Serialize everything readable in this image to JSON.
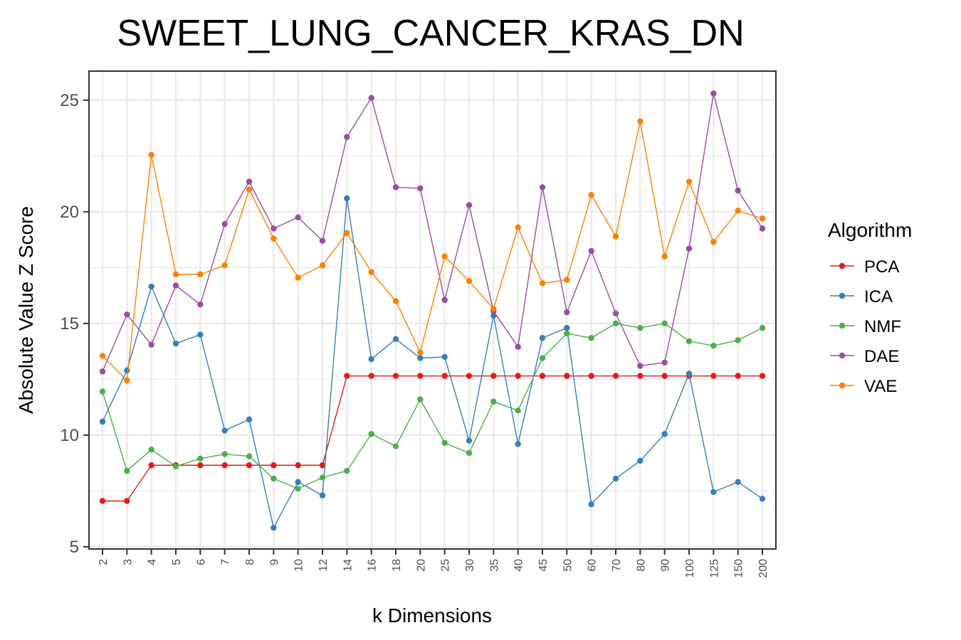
{
  "chart_data": {
    "type": "line",
    "title": "SWEET_LUNG_CANCER_KRAS_DN",
    "xlabel": "k Dimensions",
    "ylabel": "Absolute Value Z Score",
    "categories": [
      "2",
      "3",
      "4",
      "5",
      "6",
      "7",
      "8",
      "9",
      "10",
      "12",
      "14",
      "16",
      "18",
      "20",
      "25",
      "30",
      "35",
      "40",
      "45",
      "50",
      "60",
      "70",
      "80",
      "90",
      "100",
      "125",
      "150",
      "200"
    ],
    "yticks": [
      5,
      10,
      15,
      20,
      25
    ],
    "ylim": [
      4.9,
      26.3
    ],
    "grid": true,
    "legend_title": "Algorithm",
    "legend_position": "right",
    "series": [
      {
        "name": "PCA",
        "color": "#e41a1c",
        "values": [
          7.05,
          7.05,
          8.65,
          8.65,
          8.65,
          8.65,
          8.65,
          8.65,
          8.65,
          8.65,
          12.65,
          12.65,
          12.65,
          12.65,
          12.65,
          12.65,
          12.65,
          12.65,
          12.65,
          12.65,
          12.65,
          12.65,
          12.65,
          12.65,
          12.65,
          12.65,
          12.65,
          12.65
        ]
      },
      {
        "name": "ICA",
        "color": "#377eb8",
        "values": [
          10.6,
          12.9,
          16.65,
          14.1,
          14.5,
          10.2,
          10.7,
          5.85,
          7.9,
          7.3,
          20.6,
          13.4,
          14.3,
          13.45,
          13.5,
          9.75,
          15.35,
          9.6,
          14.35,
          14.8,
          6.9,
          8.05,
          8.85,
          10.05,
          12.75,
          7.45,
          7.9,
          7.15
        ]
      },
      {
        "name": "NMF",
        "color": "#4daf4a",
        "values": [
          11.95,
          8.4,
          9.35,
          8.6,
          8.95,
          9.15,
          9.05,
          8.05,
          7.6,
          8.1,
          8.4,
          10.05,
          9.5,
          11.6,
          9.65,
          9.2,
          11.5,
          11.1,
          13.45,
          14.55,
          14.35,
          15.0,
          14.8,
          15.0,
          14.2,
          14.0,
          14.25,
          14.8
        ]
      },
      {
        "name": "DAE",
        "color": "#984ea3",
        "values": [
          12.85,
          15.4,
          14.05,
          16.7,
          15.85,
          19.45,
          21.35,
          19.25,
          19.75,
          18.7,
          23.35,
          25.1,
          21.1,
          21.05,
          16.05,
          20.3,
          15.55,
          13.95,
          21.1,
          15.5,
          18.25,
          15.45,
          13.1,
          13.25,
          18.35,
          25.3,
          20.95,
          19.25
        ]
      },
      {
        "name": "VAE",
        "color": "#ff7f00",
        "values": [
          13.55,
          12.45,
          22.55,
          17.2,
          17.2,
          17.6,
          21.0,
          18.8,
          17.05,
          17.6,
          19.05,
          17.3,
          16.0,
          13.7,
          18.0,
          16.9,
          15.65,
          19.3,
          16.8,
          16.95,
          20.75,
          18.9,
          24.05,
          18.0,
          21.35,
          18.65,
          20.05,
          19.7
        ]
      }
    ]
  }
}
